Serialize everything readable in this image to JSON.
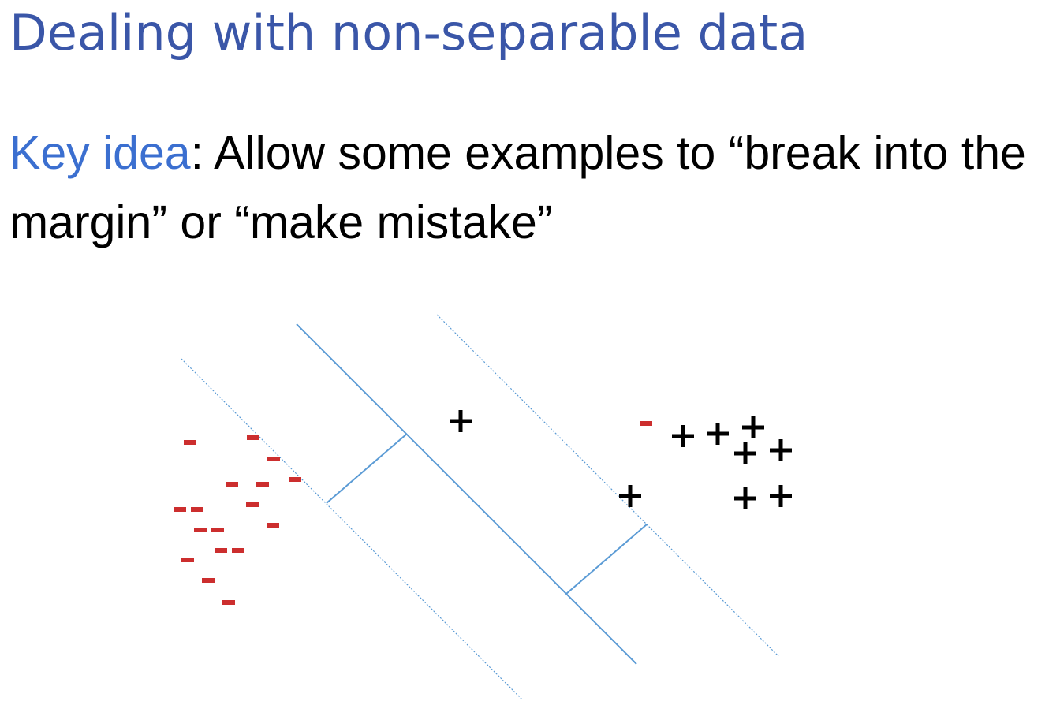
{
  "slide": {
    "title": "Dealing with non-separable data",
    "key_idea_label": "Key idea",
    "key_idea_colon": ":",
    "key_idea_text": " Allow some examples to “break into the margin” or “make mistake”"
  },
  "colors": {
    "title": "#3a56a8",
    "key_idea": "#3b6fd0",
    "text": "#000000",
    "line": "#5b9bd5",
    "negative": "#cc2e2e",
    "positive": "#000000"
  },
  "diagram": {
    "positive_symbol": "+",
    "negative_symbol": "-"
  }
}
